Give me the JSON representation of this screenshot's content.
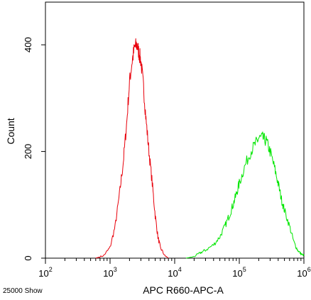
{
  "chart_data": {
    "type": "line",
    "title": "",
    "xlabel": "APC R660-APC-A",
    "ylabel": "Count",
    "x_scale": "log",
    "xlim": [
      100,
      1000000
    ],
    "ylim": [
      0,
      480
    ],
    "x_ticks": [
      {
        "base": "10",
        "exp": "2",
        "value": 100
      },
      {
        "base": "10",
        "exp": "3",
        "value": 1000
      },
      {
        "base": "10",
        "exp": "4",
        "value": 10000
      },
      {
        "base": "10",
        "exp": "5",
        "value": 100000
      },
      {
        "base": "10",
        "exp": "6",
        "value": 1000000
      }
    ],
    "y_ticks": [
      {
        "label": "0",
        "value": 0
      },
      {
        "label": "200",
        "value": 200
      },
      {
        "label": "400",
        "value": 400
      }
    ],
    "grid": false,
    "legend": "none",
    "series": [
      {
        "color": "#e8000b",
        "x": [
          600,
          800,
          1000,
          1200,
          1400,
          1600,
          1800,
          2000,
          2200,
          2400,
          2600,
          2800,
          3000,
          3300,
          3600,
          4000,
          4500,
          5000,
          5500,
          6000,
          7000,
          8000
        ],
        "y": [
          0,
          5,
          20,
          60,
          120,
          180,
          250,
          330,
          370,
          395,
          400,
          385,
          370,
          320,
          260,
          200,
          140,
          80,
          40,
          20,
          5,
          0
        ]
      },
      {
        "color": "#00e600",
        "x": [
          15000,
          20000,
          25000,
          30000,
          40000,
          50000,
          60000,
          70000,
          80000,
          90000,
          100000,
          120000,
          150000,
          180000,
          200000,
          230000,
          260000,
          300000,
          350000,
          400000,
          450000,
          500000,
          600000,
          700000,
          800000,
          900000,
          1000000
        ],
        "y": [
          0,
          3,
          10,
          15,
          25,
          40,
          60,
          80,
          100,
          120,
          140,
          170,
          200,
          215,
          225,
          225,
          220,
          200,
          170,
          140,
          110,
          90,
          60,
          30,
          15,
          8,
          5
        ]
      }
    ]
  },
  "footnote": "25000 Show"
}
